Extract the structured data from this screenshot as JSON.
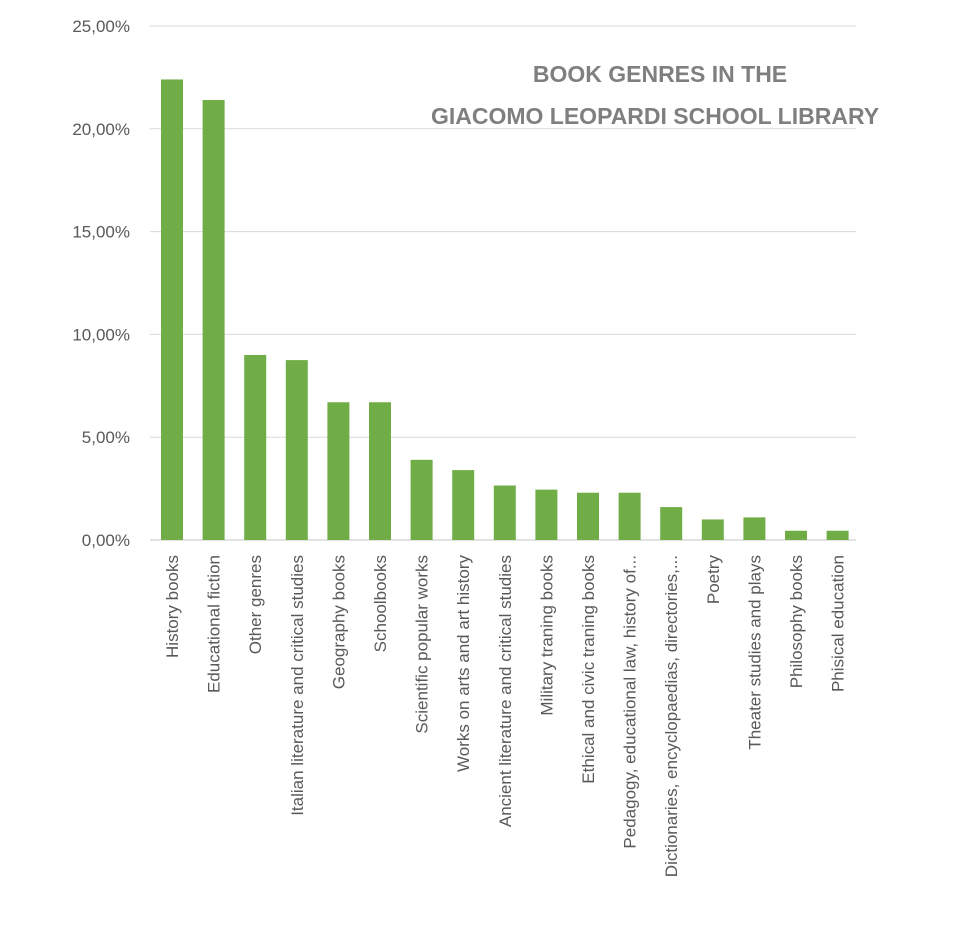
{
  "chart_data": {
    "type": "bar",
    "title_lines": [
      "BOOK GENRES IN THE",
      "GIACOMO LEOPARDI SCHOOL LIBRARY"
    ],
    "categories": [
      "History books",
      "Educational fiction",
      "Other genres",
      "Italian literature and critical studies",
      "Geography books",
      "Schoolbooks",
      "Scientific popular works",
      "Works on arts and art history",
      "Ancient literature and critical studies",
      "Military traning books",
      "Ethical and civic traning books",
      "Pedagogy, educational law, history of...",
      "Dictionaries, encyclopaedias, directories,...",
      "Poetry",
      "Theater studies and plays",
      "Philosophy books",
      "Phisical education"
    ],
    "values": [
      22.4,
      21.4,
      9.0,
      8.75,
      6.7,
      6.7,
      3.9,
      3.4,
      2.65,
      2.45,
      2.3,
      2.3,
      1.6,
      1.0,
      1.1,
      0.45,
      0.45
    ],
    "ylim": [
      0,
      25
    ],
    "yticks": [
      "0,00%",
      "5,00%",
      "10,00%",
      "15,00%",
      "20,00%",
      "25,00%"
    ],
    "ytick_values": [
      0,
      5,
      10,
      15,
      20,
      25
    ],
    "grid": true,
    "legend": "none",
    "bar_color": "#70ad47",
    "grid_color": "#d9d9d9"
  }
}
